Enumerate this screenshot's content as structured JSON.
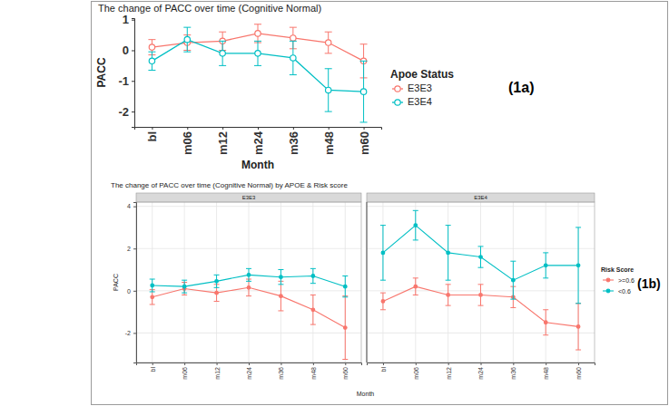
{
  "chart_data": [
    {
      "type": "line",
      "title": "The change of PACC over time (Cognitive Normal)",
      "x_label": "Month",
      "y_label": "PACC",
      "categories": [
        "bl",
        "m06",
        "m12",
        "m24",
        "m36",
        "m48",
        "m60"
      ],
      "series": [
        {
          "name": "E3E3",
          "color": "#F8766D",
          "values": [
            0.1,
            0.25,
            0.3,
            0.55,
            0.4,
            0.25,
            -0.35
          ],
          "errors": [
            0.25,
            0.25,
            0.3,
            0.3,
            0.35,
            0.35,
            0.55
          ]
        },
        {
          "name": "E3E4",
          "color": "#00BFC4",
          "values": [
            -0.35,
            0.35,
            -0.1,
            -0.1,
            -0.25,
            -1.3,
            -1.35
          ],
          "errors": [
            0.3,
            0.4,
            0.4,
            0.4,
            0.55,
            0.7,
            1.0
          ]
        }
      ],
      "ylim": [
        -2.5,
        1.05
      ],
      "yticks": [
        -2,
        -1,
        0,
        1
      ],
      "grid": false,
      "legend": "right",
      "legend_title": "Apoe Status",
      "marker": "open-circle",
      "annotation": "(1a)"
    },
    {
      "type": "line",
      "title": "The change of PACC over time (Cognitive Normal) by APOE & Risk score",
      "x_label": "Month",
      "y_label": "PACC",
      "categories": [
        "bl",
        "m06",
        "m12",
        "m24",
        "m36",
        "m48",
        "m60"
      ],
      "series": [
        {
          "name": ">=0.6",
          "color": "#F8766D"
        },
        {
          "name": "<0.6",
          "color": "#00BFC4"
        }
      ],
      "panels": [
        {
          "title": "E3E3",
          "series": [
            {
              "values": [
                -0.3,
                0.1,
                -0.1,
                0.15,
                -0.25,
                -0.9,
                -1.75
              ],
              "errors": [
                0.35,
                0.3,
                0.4,
                0.4,
                0.7,
                0.7,
                1.5
              ]
            },
            {
              "values": [
                0.25,
                0.2,
                0.45,
                0.75,
                0.65,
                0.7,
                0.2
              ],
              "errors": [
                0.3,
                0.3,
                0.3,
                0.3,
                0.35,
                0.35,
                0.5
              ]
            }
          ]
        },
        {
          "title": "E3E4",
          "series": [
            {
              "values": [
                -0.5,
                0.2,
                -0.2,
                -0.2,
                -0.3,
                -1.5,
                -1.7
              ],
              "errors": [
                0.4,
                0.4,
                0.5,
                0.5,
                0.5,
                0.6,
                1.1
              ]
            },
            {
              "values": [
                1.8,
                3.1,
                1.8,
                1.6,
                0.5,
                1.2,
                1.2
              ],
              "errors": [
                1.3,
                0.7,
                1.3,
                0.5,
                0.9,
                0.6,
                1.8
              ]
            }
          ]
        }
      ],
      "ylim": [
        -3.4,
        4.2
      ],
      "yticks": [
        -2,
        0,
        2,
        4
      ],
      "grid": true,
      "legend": "right",
      "legend_title": "Risk Score",
      "marker": "circle",
      "annotation": "(1b)"
    }
  ]
}
